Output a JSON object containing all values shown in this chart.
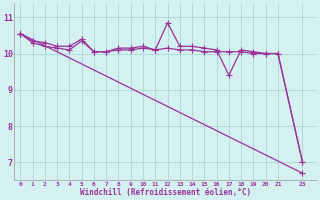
{
  "line1_x": [
    0,
    1,
    2,
    3,
    4,
    5,
    6,
    7,
    8,
    9,
    10,
    11,
    12,
    13,
    14,
    15,
    16,
    17,
    18,
    19,
    20,
    21,
    23
  ],
  "line1_y": [
    10.55,
    10.3,
    10.2,
    10.15,
    10.1,
    10.35,
    10.05,
    10.05,
    10.1,
    10.1,
    10.15,
    10.1,
    10.15,
    10.1,
    10.1,
    10.05,
    10.05,
    10.05,
    10.05,
    10.0,
    10.0,
    10.0,
    7.0
  ],
  "line2_x": [
    0,
    1,
    2,
    3,
    4,
    5,
    6,
    7,
    8,
    9,
    10,
    11,
    12,
    13,
    14,
    15,
    16,
    17,
    18,
    19,
    20,
    21,
    23
  ],
  "line2_y": [
    10.55,
    10.35,
    10.3,
    10.2,
    10.2,
    10.4,
    10.05,
    10.05,
    10.15,
    10.15,
    10.2,
    10.1,
    10.85,
    10.2,
    10.2,
    10.15,
    10.1,
    9.4,
    10.1,
    10.05,
    10.0,
    10.0,
    7.0
  ],
  "line3_x": [
    0,
    23
  ],
  "line3_y": [
    10.55,
    6.7
  ],
  "line_color": "#993399",
  "bg_color": "#d4f0f0",
  "grid_color": "#b0dada",
  "xlabel": "Windchill (Refroidissement éolien,°C)",
  "xtick_labels": [
    "0",
    "1",
    "2",
    "3",
    "4",
    "5",
    "6",
    "7",
    "8",
    "9",
    "10",
    "11",
    "12",
    "13",
    "14",
    "15",
    "16",
    "17",
    "18",
    "19",
    "20",
    "21",
    "23"
  ],
  "xtick_positions": [
    0,
    1,
    2,
    3,
    4,
    5,
    6,
    7,
    8,
    9,
    10,
    11,
    12,
    13,
    14,
    15,
    16,
    17,
    18,
    19,
    20,
    21,
    23
  ],
  "yticks": [
    7,
    8,
    9,
    10,
    11
  ],
  "xlim": [
    -0.5,
    24.2
  ],
  "ylim": [
    6.5,
    11.4
  ]
}
